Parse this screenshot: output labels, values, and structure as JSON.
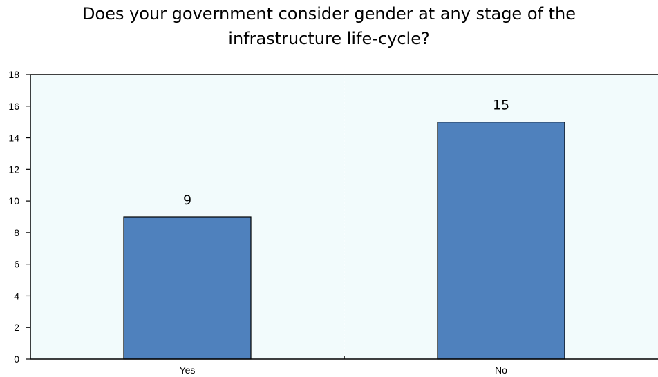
{
  "chart_data": {
    "type": "bar",
    "title_lines": [
      "Does your government consider gender at any stage of the",
      "infrastructure life-cycle?"
    ],
    "categories": [
      "Yes",
      "No"
    ],
    "values": [
      9,
      15
    ],
    "data_labels": [
      "9",
      "15"
    ],
    "ylim": [
      0,
      18
    ],
    "y_ticks": [
      "0",
      "2",
      "4",
      "6",
      "8",
      "10",
      "12",
      "14",
      "16",
      "18"
    ],
    "grid": false,
    "legend": "none",
    "colors": {
      "bar": "#4f81bd",
      "bar_edge": "#000000",
      "plot_background": "#f2fbfc"
    }
  }
}
